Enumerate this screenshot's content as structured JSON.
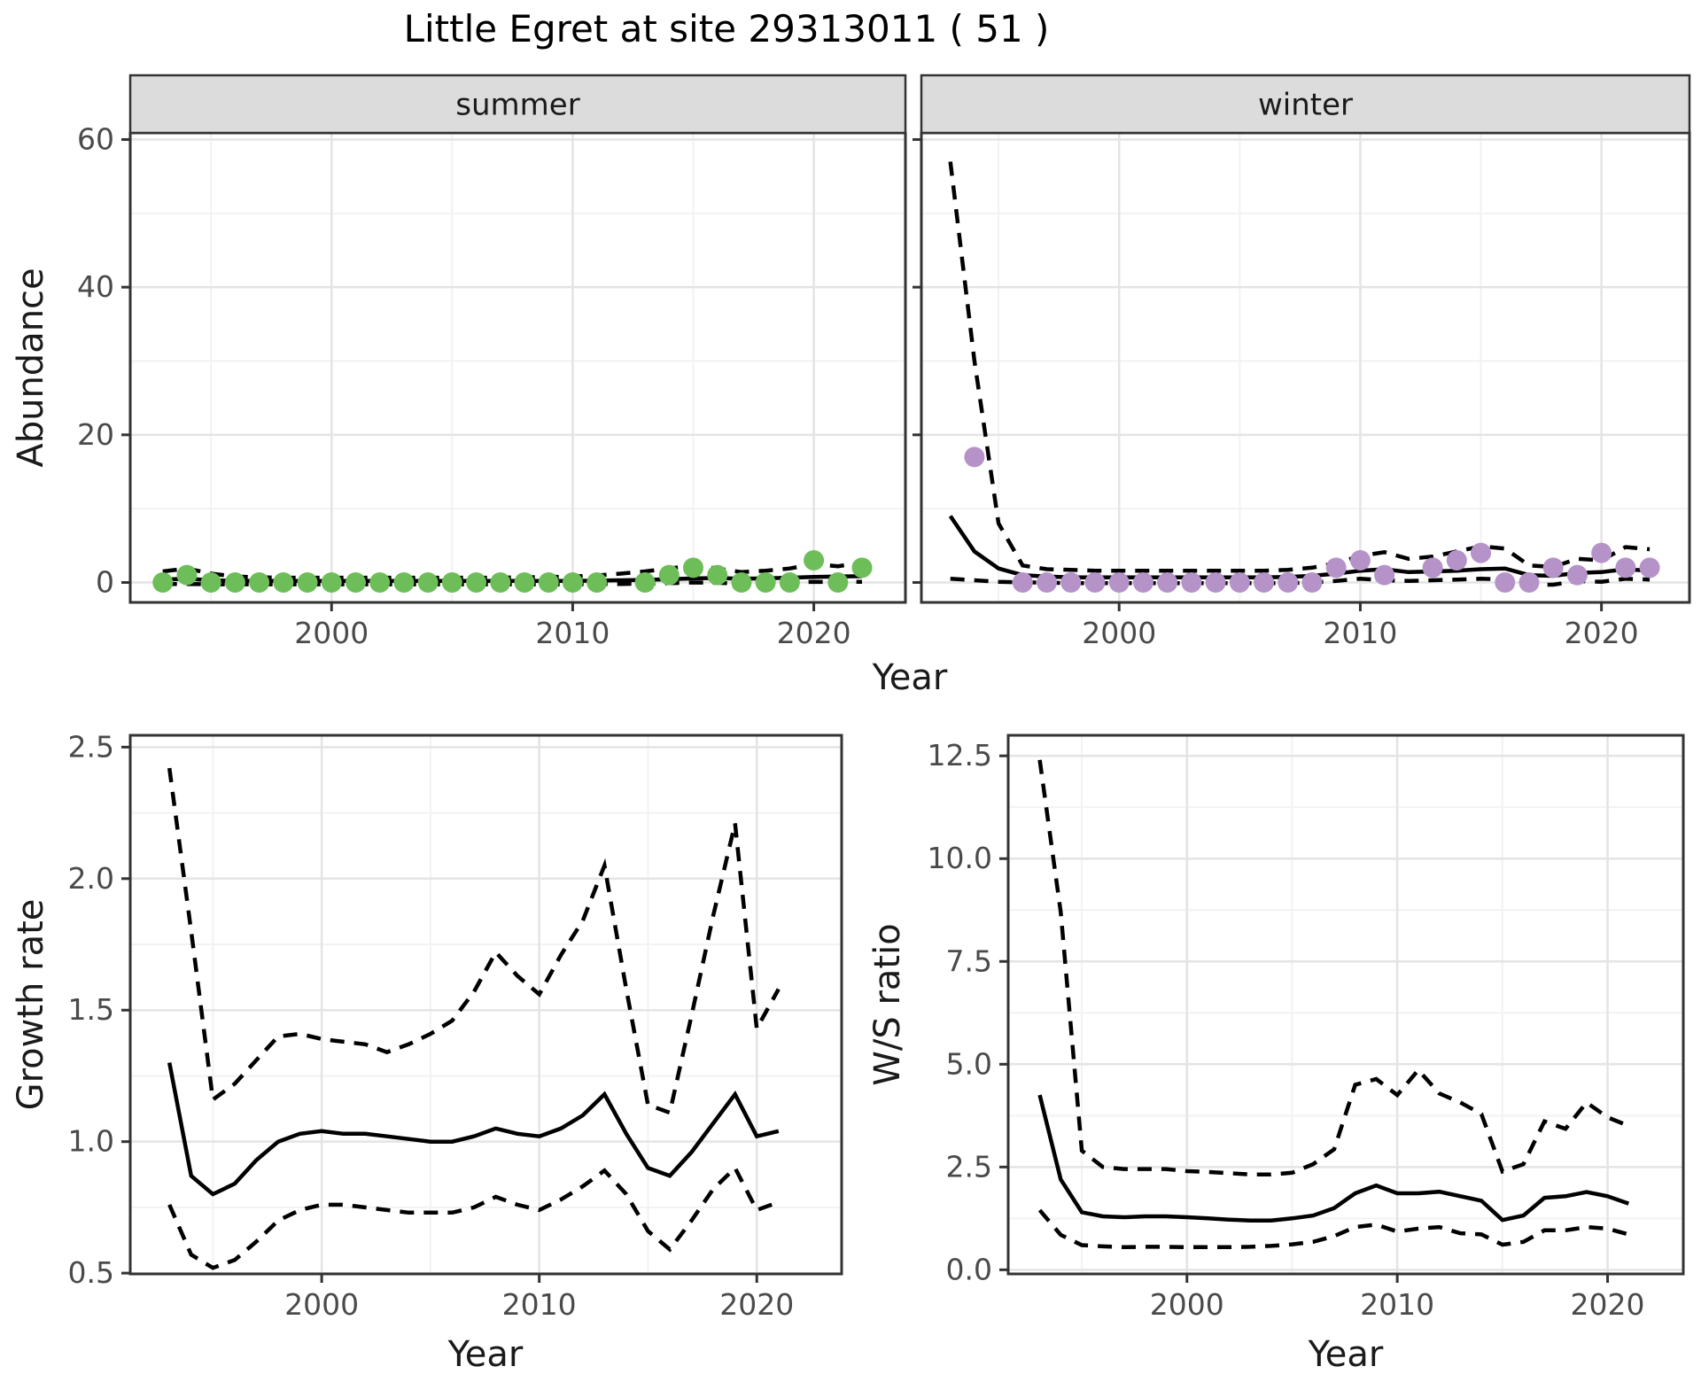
{
  "colors": {
    "background": "#FFFFFF",
    "summer_point": "#6DBE59",
    "winter_point": "#B593C8",
    "line": "#000000",
    "strip_background": "#DCDCDC",
    "panel_border": "#333333",
    "grid_major": "#E4E4E4",
    "grid_minor": "#F2F2F2",
    "axis_text": "#4A4A4A",
    "strip_text": "#1A1A1A"
  },
  "chart_data": {
    "type": "line",
    "title": "Little Egret at site 29313011 ( 51 )",
    "xlabel": "Year",
    "xtick_values": [
      2000,
      2010,
      2020
    ],
    "xtick_labels": [
      "2000",
      "2010",
      "2020"
    ],
    "x_minor": [
      1995,
      2005,
      2015
    ],
    "abundance": {
      "ylabel": "Abundance",
      "ylim": [
        0,
        60
      ],
      "ytick_values": [
        0,
        20,
        40,
        60
      ],
      "ytick_labels": [
        "0",
        "20",
        "40",
        "60"
      ],
      "y_minor": [
        10,
        30,
        50
      ],
      "facets": [
        {
          "label": "summer",
          "point_color": "#6DBE59",
          "observations": {
            "years": [
              1993,
              1994,
              1995,
              1996,
              1997,
              1998,
              1999,
              2000,
              2001,
              2002,
              2003,
              2004,
              2005,
              2006,
              2007,
              2008,
              2009,
              2010,
              2011,
              2013,
              2014,
              2015,
              2016,
              2017,
              2018,
              2019,
              2020,
              2021,
              2022
            ],
            "values": [
              0,
              1,
              0,
              0,
              0,
              0,
              0,
              0,
              0,
              0,
              0,
              0,
              0,
              0,
              0,
              0,
              0,
              0,
              0,
              0,
              1,
              2,
              1,
              0,
              0,
              0,
              3,
              0,
              2
            ]
          },
          "model": {
            "years": [
              1993,
              1994,
              1995,
              1996,
              1997,
              1998,
              1999,
              2000,
              2001,
              2002,
              2003,
              2004,
              2005,
              2006,
              2007,
              2008,
              2009,
              2010,
              2011,
              2012,
              2013,
              2014,
              2015,
              2016,
              2017,
              2018,
              2019,
              2020,
              2021,
              2022
            ],
            "mean": [
              0.4,
              0.5,
              0.3,
              0.2,
              0.2,
              0.2,
              0.2,
              0.2,
              0.2,
              0.2,
              0.2,
              0.2,
              0.2,
              0.2,
              0.2,
              0.2,
              0.2,
              0.2,
              0.25,
              0.3,
              0.35,
              0.45,
              0.55,
              0.6,
              0.5,
              0.55,
              0.65,
              0.75,
              0.8,
              0.85
            ],
            "upper": [
              1.5,
              1.9,
              1.2,
              0.8,
              0.7,
              0.65,
              0.65,
              0.65,
              0.65,
              0.65,
              0.65,
              0.65,
              0.65,
              0.65,
              0.65,
              0.7,
              0.75,
              0.8,
              0.95,
              1.2,
              1.5,
              1.9,
              2.3,
              1.9,
              1.4,
              1.6,
              1.9,
              2.5,
              2.2,
              2.7
            ],
            "lower": [
              -0.2,
              -0.2,
              -0.25,
              -0.25,
              -0.25,
              -0.25,
              -0.25,
              -0.25,
              -0.25,
              -0.25,
              -0.25,
              -0.25,
              -0.25,
              -0.25,
              -0.25,
              -0.25,
              -0.25,
              -0.25,
              -0.2,
              -0.2,
              -0.15,
              -0.1,
              0.0,
              -0.05,
              -0.15,
              -0.1,
              0.0,
              0.1,
              0.05,
              0.1
            ]
          }
        },
        {
          "label": "winter",
          "point_color": "#B593C8",
          "observations": {
            "years": [
              1994,
              1996,
              1997,
              1998,
              1999,
              2000,
              2001,
              2002,
              2003,
              2004,
              2005,
              2006,
              2007,
              2008,
              2009,
              2010,
              2011,
              2013,
              2014,
              2015,
              2016,
              2017,
              2018,
              2019,
              2020,
              2021,
              2022
            ],
            "values": [
              17,
              0,
              0,
              0,
              0,
              0,
              0,
              0,
              0,
              0,
              0,
              0,
              0,
              0,
              2,
              3,
              1,
              2,
              3,
              4,
              0,
              0,
              2,
              1,
              4,
              2,
              2
            ]
          },
          "model": {
            "years": [
              1993,
              1994,
              1995,
              1996,
              1997,
              1998,
              1999,
              2000,
              2001,
              2002,
              2003,
              2004,
              2005,
              2006,
              2007,
              2008,
              2009,
              2010,
              2011,
              2012,
              2013,
              2014,
              2015,
              2016,
              2017,
              2018,
              2019,
              2020,
              2021,
              2022
            ],
            "mean": [
              9.0,
              4.2,
              1.9,
              1.0,
              0.8,
              0.7,
              0.7,
              0.7,
              0.7,
              0.7,
              0.7,
              0.7,
              0.7,
              0.7,
              0.75,
              0.9,
              1.2,
              1.6,
              1.8,
              1.4,
              1.5,
              1.6,
              1.8,
              1.9,
              1.0,
              0.9,
              1.3,
              1.4,
              1.8,
              1.6
            ],
            "upper": [
              57,
              30,
              8,
              2.3,
              1.8,
              1.7,
              1.6,
              1.6,
              1.6,
              1.6,
              1.6,
              1.6,
              1.6,
              1.6,
              1.7,
              2.0,
              2.6,
              3.6,
              4.1,
              3.2,
              3.5,
              4.2,
              4.9,
              4.6,
              2.3,
              2.1,
              3.2,
              3.0,
              4.8,
              4.5
            ],
            "lower": [
              0.5,
              0.3,
              0.1,
              0.0,
              0.0,
              -0.1,
              -0.1,
              -0.1,
              -0.1,
              -0.1,
              -0.1,
              -0.1,
              -0.1,
              -0.1,
              -0.1,
              0.0,
              0.2,
              0.5,
              0.3,
              0.2,
              0.3,
              0.4,
              0.5,
              0.4,
              -0.3,
              -0.3,
              0.2,
              0.1,
              0.5,
              0.4
            ]
          }
        }
      ]
    },
    "growth_rate": {
      "ylabel": "Growth rate",
      "xlabel": "Year",
      "ylim": [
        0.5,
        2.5
      ],
      "ytick_values": [
        0.5,
        1.0,
        1.5,
        2.0,
        2.5
      ],
      "ytick_labels": [
        "0.5",
        "1.0",
        "1.5",
        "2.0",
        "2.5"
      ],
      "y_minor": [
        0.75,
        1.25,
        1.75,
        2.25
      ],
      "model": {
        "years": [
          1993,
          1994,
          1995,
          1996,
          1997,
          1998,
          1999,
          2000,
          2001,
          2002,
          2003,
          2004,
          2005,
          2006,
          2007,
          2008,
          2009,
          2010,
          2011,
          2012,
          2013,
          2014,
          2015,
          2016,
          2017,
          2018,
          2019,
          2020,
          2021
        ],
        "mean": [
          1.3,
          0.87,
          0.8,
          0.84,
          0.93,
          1.0,
          1.03,
          1.04,
          1.03,
          1.03,
          1.02,
          1.01,
          1.0,
          1.0,
          1.02,
          1.05,
          1.03,
          1.02,
          1.05,
          1.1,
          1.18,
          1.03,
          0.9,
          0.87,
          0.96,
          1.07,
          1.18,
          1.02,
          1.04
        ],
        "upper": [
          2.42,
          1.8,
          1.16,
          1.22,
          1.31,
          1.4,
          1.41,
          1.39,
          1.38,
          1.37,
          1.34,
          1.37,
          1.41,
          1.46,
          1.57,
          1.72,
          1.63,
          1.56,
          1.71,
          1.84,
          2.05,
          1.58,
          1.14,
          1.11,
          1.48,
          1.86,
          2.21,
          1.43,
          1.58
        ],
        "lower": [
          0.76,
          0.57,
          0.52,
          0.55,
          0.62,
          0.7,
          0.74,
          0.76,
          0.76,
          0.75,
          0.74,
          0.73,
          0.73,
          0.73,
          0.75,
          0.79,
          0.76,
          0.74,
          0.78,
          0.83,
          0.89,
          0.8,
          0.66,
          0.59,
          0.7,
          0.82,
          0.9,
          0.74,
          0.77
        ]
      }
    },
    "ws_ratio": {
      "ylabel": "W/S ratio",
      "xlabel": "Year",
      "ylim": [
        0.0,
        12.5
      ],
      "ytick_values": [
        0.0,
        2.5,
        5.0,
        7.5,
        10.0,
        12.5
      ],
      "ytick_labels": [
        "0.0",
        "2.5",
        "5.0",
        "7.5",
        "10.0",
        "12.5"
      ],
      "y_minor": [
        1.25,
        3.75,
        6.25,
        8.75,
        11.25
      ],
      "model": {
        "years": [
          1993,
          1994,
          1995,
          1996,
          1997,
          1998,
          1999,
          2000,
          2001,
          2002,
          2003,
          2004,
          2005,
          2006,
          2007,
          2008,
          2009,
          2010,
          2011,
          2012,
          2013,
          2014,
          2015,
          2016,
          2017,
          2018,
          2019,
          2020,
          2021
        ],
        "mean": [
          4.25,
          2.2,
          1.4,
          1.3,
          1.28,
          1.3,
          1.3,
          1.28,
          1.25,
          1.22,
          1.2,
          1.2,
          1.25,
          1.32,
          1.5,
          1.86,
          2.05,
          1.86,
          1.86,
          1.9,
          1.79,
          1.68,
          1.21,
          1.32,
          1.75,
          1.79,
          1.89,
          1.79,
          1.61
        ],
        "upper": [
          12.4,
          8.7,
          2.9,
          2.5,
          2.45,
          2.45,
          2.45,
          2.4,
          2.38,
          2.35,
          2.32,
          2.32,
          2.36,
          2.57,
          2.93,
          4.5,
          4.64,
          4.25,
          4.86,
          4.29,
          4.07,
          3.79,
          2.39,
          2.57,
          3.61,
          3.43,
          4.07,
          3.71,
          3.5
        ],
        "lower": [
          1.45,
          0.85,
          0.6,
          0.57,
          0.55,
          0.56,
          0.56,
          0.55,
          0.55,
          0.55,
          0.56,
          0.58,
          0.62,
          0.68,
          0.82,
          1.04,
          1.1,
          0.93,
          1.0,
          1.04,
          0.89,
          0.86,
          0.61,
          0.68,
          0.96,
          0.96,
          1.04,
          1.0,
          0.86
        ]
      }
    }
  }
}
